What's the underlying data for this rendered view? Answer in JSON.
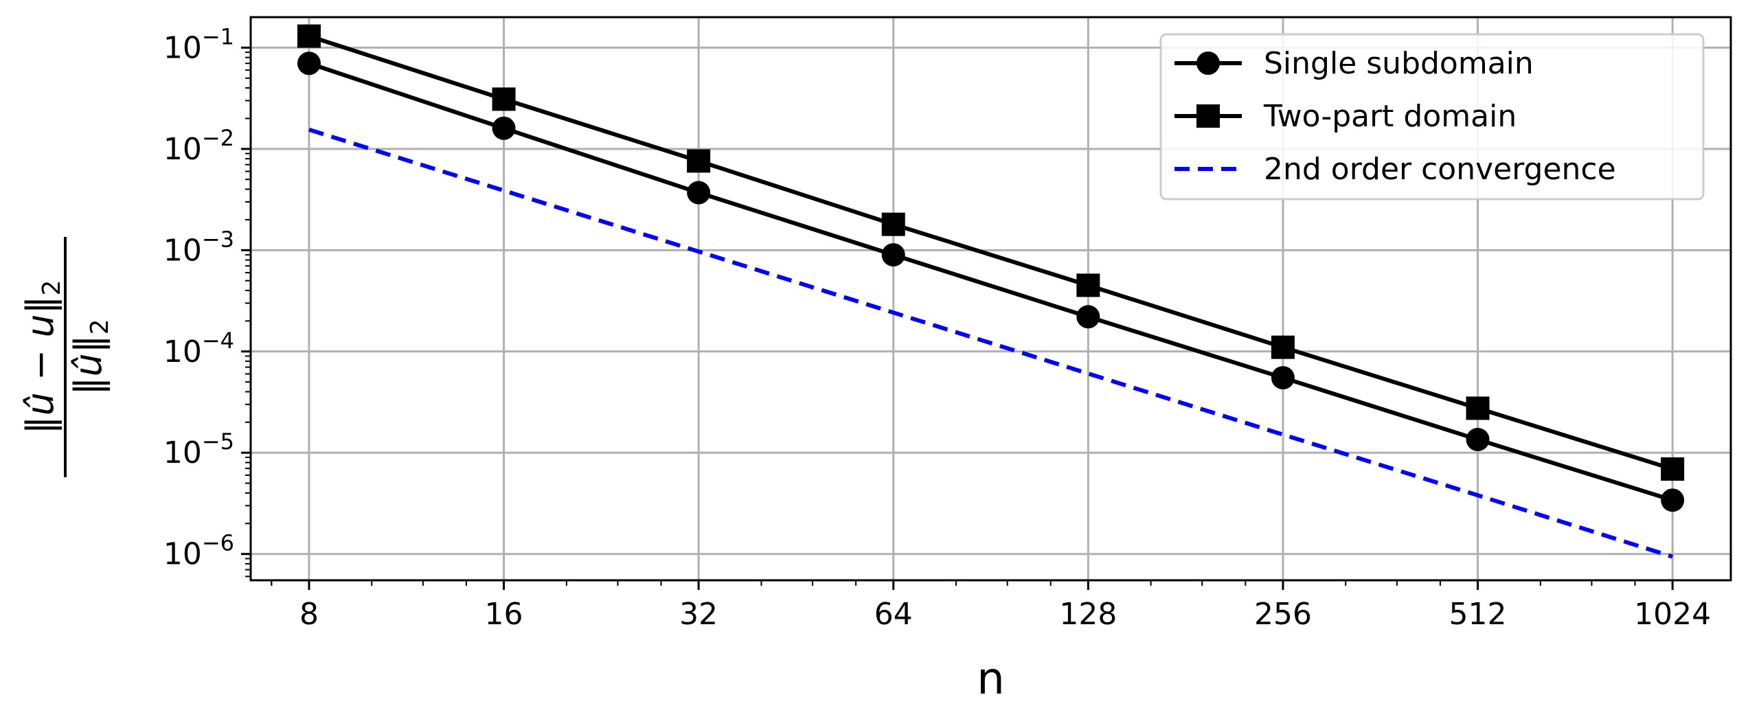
{
  "chart_data": {
    "type": "line",
    "xscale": "log2",
    "yscale": "log10",
    "x": [
      8,
      16,
      32,
      64,
      128,
      256,
      512,
      1024
    ],
    "x_tick_labels": [
      "8",
      "16",
      "32",
      "64",
      "128",
      "256",
      "512",
      "1024"
    ],
    "xlim": [
      6.5,
      1260
    ],
    "ylim": [
      5.5e-07,
      0.2
    ],
    "y_tick_values": [
      0.1,
      0.01,
      0.001,
      0.0001,
      1e-05,
      1e-06
    ],
    "y_tick_exponents": [
      "−1",
      "−2",
      "−3",
      "−4",
      "−5",
      "−6"
    ],
    "y_tick_base": "10",
    "xlabel": "n",
    "ylabel": {
      "numerator": "‖û − u‖",
      "denominator": "‖û‖",
      "subscript": "2"
    },
    "grid": true,
    "legend_position": "top-right",
    "series": [
      {
        "name": "Single subdomain",
        "marker": "circle",
        "line": "solid",
        "color": "#000000",
        "values": [
          0.07,
          0.016,
          0.0037,
          0.0009,
          0.00022,
          5.5e-05,
          1.35e-05,
          3.4e-06
        ]
      },
      {
        "name": "Two-part domain",
        "marker": "square",
        "line": "solid",
        "color": "#000000",
        "values": [
          0.13,
          0.031,
          0.0076,
          0.0018,
          0.00045,
          0.00011,
          2.75e-05,
          6.9e-06
        ]
      },
      {
        "name": "2nd order convergence",
        "marker": "none",
        "line": "dashed",
        "color": "#0000ff",
        "values": [
          0.0155,
          0.00388,
          0.00097,
          0.000242,
          6.05e-05,
          1.51e-05,
          3.8e-06,
          9.4e-07
        ]
      }
    ]
  }
}
